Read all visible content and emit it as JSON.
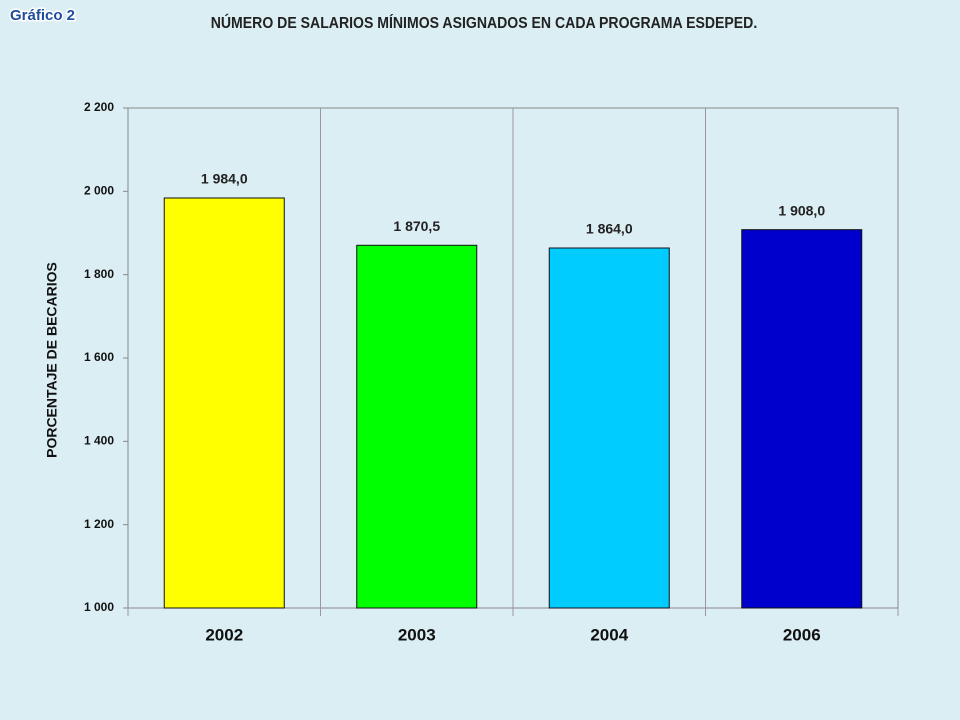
{
  "badge": "Gráfico 2",
  "chart_data": {
    "type": "bar",
    "title": "NÚMERO DE SALARIOS MÍNIMOS ASIGNADOS EN CADA PROGRAMA ESDEPED.",
    "y_label": "PORCENTAJE DE BECARIOS",
    "categories": [
      "2002",
      "2003",
      "2004",
      "2006"
    ],
    "values": [
      1984,
      1870.5,
      1864,
      1908
    ],
    "value_labels": [
      "1 984,0",
      "1 870,5",
      "1 864,0",
      "1 908,0"
    ],
    "colors": [
      "#ffff00",
      "#00ff00",
      "#00ccff",
      "#0000cc"
    ],
    "ylim": [
      1000,
      2200
    ],
    "yticks": [
      {
        "value": 1000,
        "label": "1 000"
      },
      {
        "value": 1200,
        "label": "1 200"
      },
      {
        "value": 1400,
        "label": "1 400"
      },
      {
        "value": 1600,
        "label": "1 600"
      },
      {
        "value": 1800,
        "label": "1 800"
      },
      {
        "value": 2000,
        "label": "2 000"
      },
      {
        "value": 2200,
        "label": "2 200"
      }
    ]
  }
}
